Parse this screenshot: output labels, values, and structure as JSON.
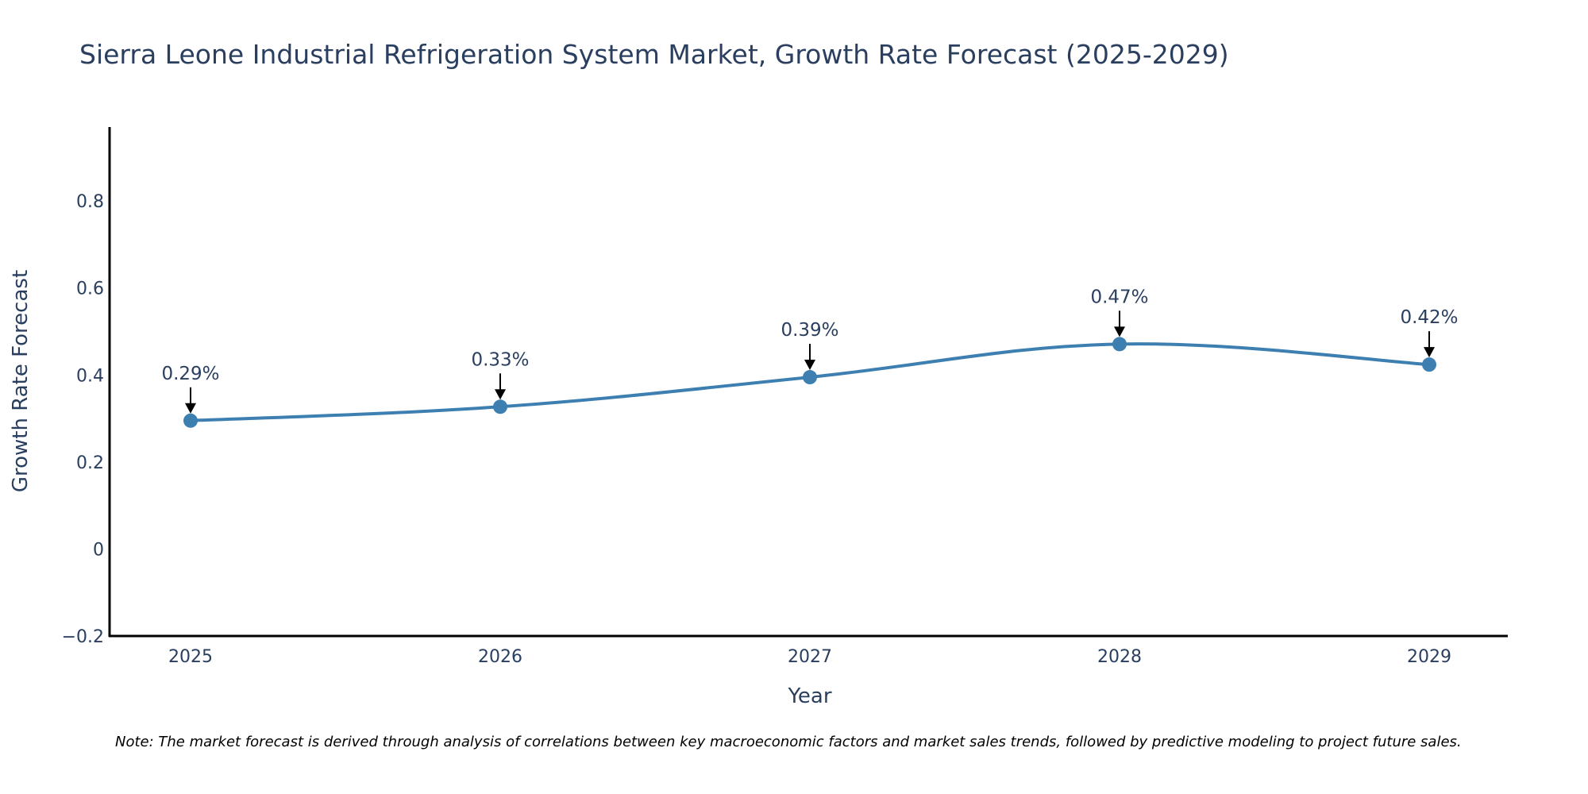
{
  "chart_data": {
    "type": "line",
    "title": "Sierra Leone Industrial Refrigeration System Market, Growth Rate Forecast (2025-2029)",
    "xlabel": "Year",
    "ylabel": "Growth Rate Forecast",
    "categories": [
      "2025",
      "2026",
      "2027",
      "2028",
      "2029"
    ],
    "series": [
      {
        "name": "Growth Rate Forecast",
        "values": [
          0.295,
          0.327,
          0.395,
          0.471,
          0.424
        ],
        "labels": [
          "0.29%",
          "0.33%",
          "0.39%",
          "0.47%",
          "0.42%"
        ]
      }
    ],
    "ylim": [
      -0.2,
      0.97
    ],
    "yticks": [
      -0.2,
      0,
      0.2,
      0.4,
      0.6,
      0.8
    ],
    "ytick_labels": [
      "−0.2",
      "0",
      "0.2",
      "0.4",
      "0.6",
      "0.8"
    ],
    "grid": false,
    "line_color": "#3d7fb0",
    "note": "Note: The market forecast is derived through analysis of correlations between key macroeconomic factors and market sales trends, followed by predictive modeling to project future sales."
  }
}
